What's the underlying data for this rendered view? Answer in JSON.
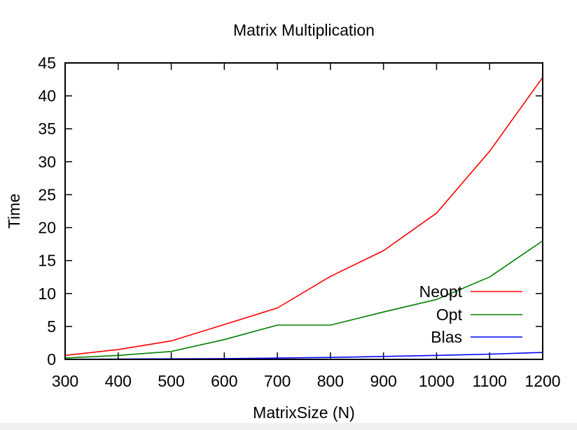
{
  "chart_data": {
    "type": "line",
    "title": "Matrix Multiplication",
    "xlabel": "MatrixSize (N)",
    "ylabel": "Time",
    "x": [
      300,
      400,
      500,
      600,
      700,
      800,
      900,
      1000,
      1100,
      1200
    ],
    "xlim": [
      300,
      1200
    ],
    "ylim": [
      0,
      45
    ],
    "xticks": [
      300,
      400,
      500,
      600,
      700,
      800,
      900,
      1000,
      1100,
      1200
    ],
    "yticks": [
      0,
      5,
      10,
      15,
      20,
      25,
      30,
      35,
      40,
      45
    ],
    "grid": false,
    "legend_position": "bottom-right",
    "series": [
      {
        "name": "Neopt",
        "color": "#ff0000",
        "values": [
          0.6,
          1.5,
          2.8,
          5.3,
          7.8,
          12.6,
          16.5,
          22.2,
          31.6,
          42.8
        ]
      },
      {
        "name": "Opt",
        "color": "#008000",
        "values": [
          0.2,
          0.6,
          1.2,
          3.0,
          5.2,
          5.2,
          7.2,
          9.1,
          12.5,
          18.0
        ]
      },
      {
        "name": "Blas",
        "color": "#0000ff",
        "values": [
          0.02,
          0.05,
          0.08,
          0.12,
          0.2,
          0.3,
          0.45,
          0.6,
          0.8,
          1.05
        ]
      }
    ]
  }
}
